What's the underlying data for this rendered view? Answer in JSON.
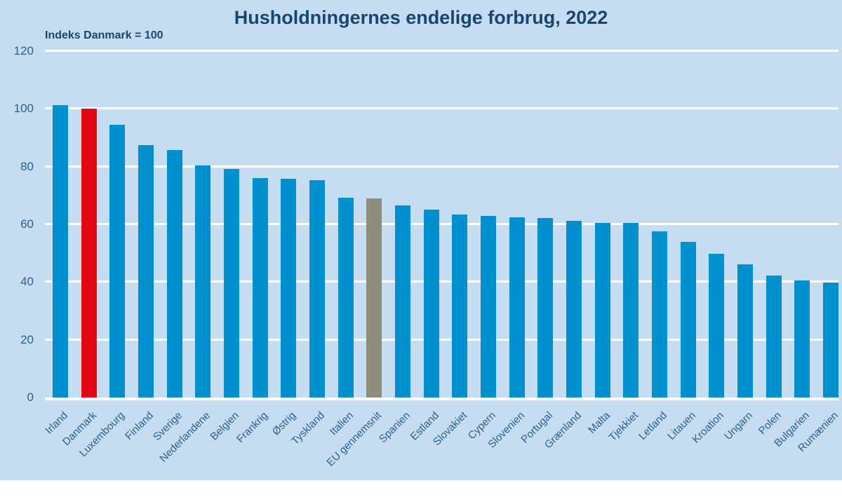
{
  "chart_data": {
    "type": "bar",
    "title": "Husholdningernes endelige forbrug, 2022",
    "ylabel": "Indeks Danmark = 100",
    "xlabel": "",
    "ylim": [
      0,
      120
    ],
    "yticks": [
      0,
      20,
      40,
      60,
      80,
      100,
      120
    ],
    "grid": "horizontal white gridlines, bars drawn on top",
    "legend": "none",
    "categories": [
      "Irland",
      "Danmark",
      "Luxembourg",
      "Finland",
      "Sverige",
      "Nederlandene",
      "Belgien",
      "Frankrig",
      "Østrig",
      "Tyskland",
      "Italien",
      "EU gennemsnit",
      "Spanien",
      "Estland",
      "Slovakiet",
      "Cypern",
      "Slovenien",
      "Portugal",
      "Grænland",
      "Malta",
      "Tjekkiet",
      "Letland",
      "Litauen",
      "Kroation",
      "Ungarn",
      "Polen",
      "Bulgarien",
      "Rumænien"
    ],
    "values": [
      101.3,
      100,
      94.6,
      87.5,
      85.7,
      80.5,
      79.2,
      76.1,
      75.8,
      75.2,
      69.3,
      69.0,
      66.6,
      65.1,
      63.3,
      62.9,
      62.4,
      62.1,
      61.2,
      60.6,
      60.5,
      57.6,
      53.9,
      49.8,
      46.1,
      42.3,
      40.5,
      39.8
    ],
    "bar_roles": [
      "default",
      "highlight",
      "default",
      "default",
      "default",
      "default",
      "default",
      "default",
      "default",
      "default",
      "default",
      "average",
      "default",
      "default",
      "default",
      "default",
      "default",
      "default",
      "default",
      "default",
      "default",
      "default",
      "default",
      "default",
      "default",
      "default",
      "default",
      "default"
    ],
    "highlighted_category": "Danmark",
    "average_category": "EU gennemsnit"
  },
  "colors": {
    "background": "#C5DCF1",
    "bar_default": "#0090D0",
    "bar_highlight": "#E30613",
    "bar_average": "#8E8E7D",
    "gridline": "#FFFFFF",
    "title_text": "#17466F",
    "axis_text": "#2A618E"
  }
}
